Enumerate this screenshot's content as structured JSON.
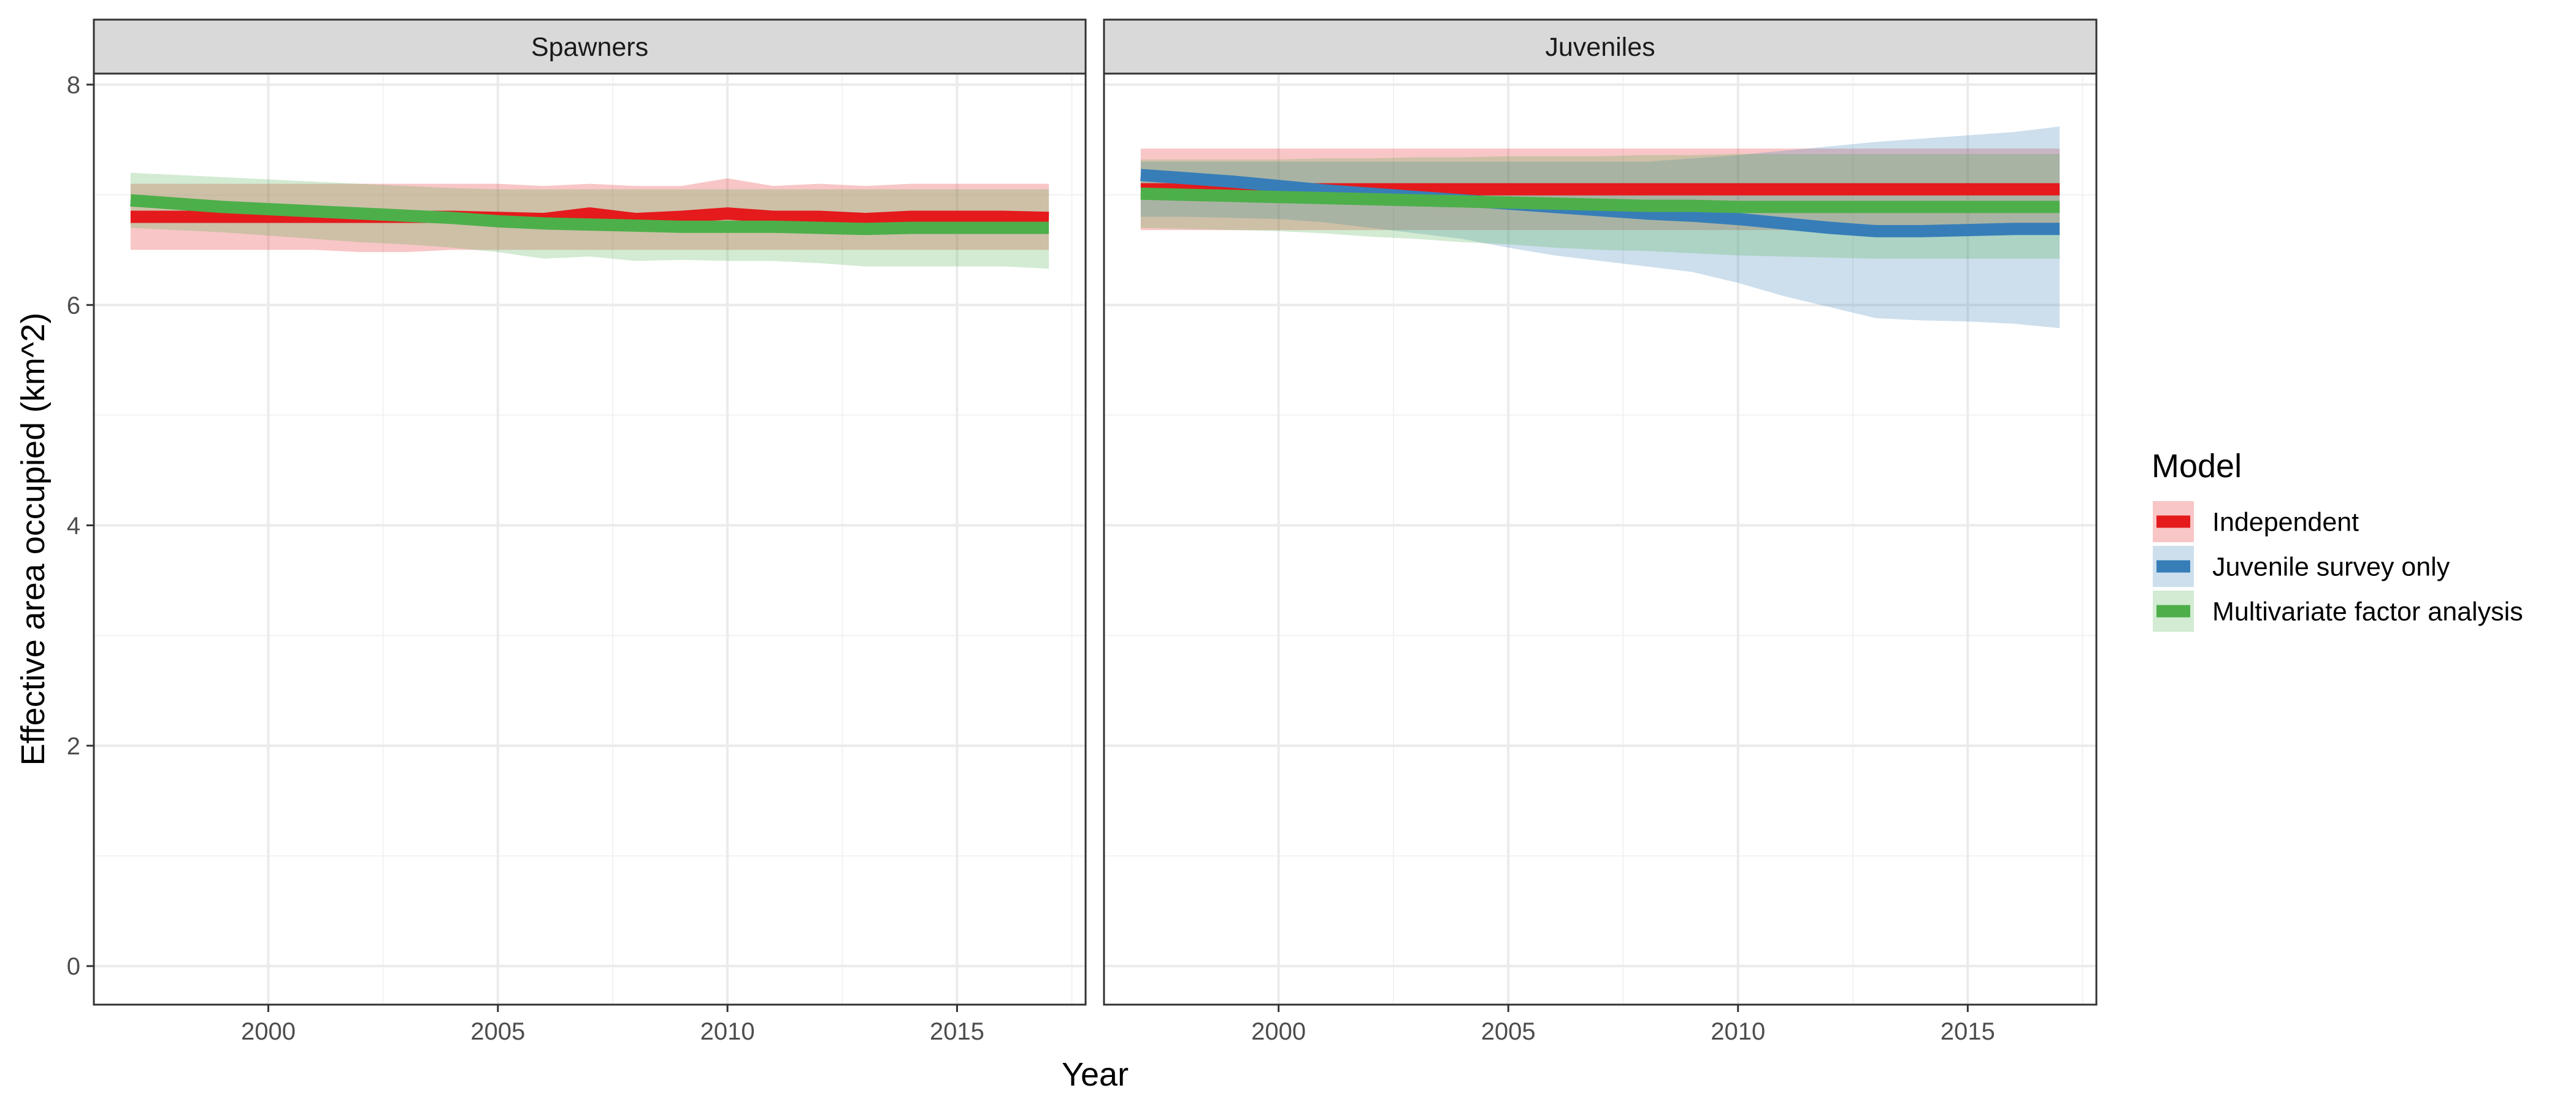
{
  "chart_data": {
    "type": "line",
    "xlabel": "Year",
    "ylabel": "Effective area occupied (km^2)",
    "xlim": [
      1996.2,
      2017.8
    ],
    "ylim": [
      -0.35,
      8.1
    ],
    "x_ticks": [
      2000,
      2005,
      2010,
      2015
    ],
    "y_ticks": [
      0,
      2,
      4,
      6,
      8
    ],
    "grid": true,
    "legend": {
      "title": "Model",
      "position": "right",
      "entries": [
        "Independent",
        "Juvenile survey only",
        "Multivariate factor analysis"
      ]
    },
    "colors": {
      "Independent": "#e41a1c",
      "Juvenile survey only": "#377eb8",
      "Multivariate factor analysis": "#4daf4a"
    },
    "panels": [
      {
        "title": "Spawners",
        "x": [
          1997,
          1998,
          1999,
          2000,
          2001,
          2002,
          2003,
          2004,
          2005,
          2006,
          2007,
          2008,
          2009,
          2010,
          2011,
          2012,
          2013,
          2014,
          2015,
          2016,
          2017
        ],
        "series": [
          {
            "name": "Independent",
            "values": [
              6.8,
              6.8,
              6.8,
              6.8,
              6.8,
              6.8,
              6.8,
              6.8,
              6.79,
              6.78,
              6.83,
              6.78,
              6.8,
              6.83,
              6.8,
              6.8,
              6.78,
              6.8,
              6.8,
              6.8,
              6.79
            ],
            "lower": [
              6.5,
              6.5,
              6.5,
              6.5,
              6.5,
              6.48,
              6.48,
              6.5,
              6.5,
              6.5,
              6.5,
              6.5,
              6.5,
              6.5,
              6.5,
              6.5,
              6.5,
              6.5,
              6.5,
              6.5,
              6.5
            ],
            "upper": [
              7.1,
              7.1,
              7.1,
              7.1,
              7.1,
              7.1,
              7.1,
              7.1,
              7.1,
              7.08,
              7.1,
              7.08,
              7.08,
              7.15,
              7.08,
              7.1,
              7.08,
              7.1,
              7.1,
              7.1,
              7.1
            ]
          },
          {
            "name": "Juvenile survey only",
            "values": [],
            "lower": [],
            "upper": []
          },
          {
            "name": "Multivariate factor analysis",
            "values": [
              6.95,
              6.92,
              6.89,
              6.87,
              6.85,
              6.83,
              6.81,
              6.79,
              6.76,
              6.74,
              6.73,
              6.72,
              6.71,
              6.71,
              6.71,
              6.7,
              6.69,
              6.7,
              6.7,
              6.7,
              6.7
            ],
            "lower": [
              6.7,
              6.68,
              6.66,
              6.63,
              6.6,
              6.57,
              6.55,
              6.52,
              6.48,
              6.42,
              6.44,
              6.4,
              6.41,
              6.4,
              6.4,
              6.38,
              6.35,
              6.35,
              6.35,
              6.35,
              6.33
            ],
            "upper": [
              7.2,
              7.18,
              7.16,
              7.14,
              7.12,
              7.1,
              7.08,
              7.06,
              7.05,
              7.05,
              7.05,
              7.05,
              7.05,
              7.05,
              7.05,
              7.05,
              7.05,
              7.05,
              7.05,
              7.05,
              7.05
            ]
          }
        ]
      },
      {
        "title": "Juveniles",
        "x": [
          1997,
          1998,
          1999,
          2000,
          2001,
          2002,
          2003,
          2004,
          2005,
          2006,
          2007,
          2008,
          2009,
          2010,
          2011,
          2012,
          2013,
          2014,
          2015,
          2016,
          2017
        ],
        "series": [
          {
            "name": "Independent",
            "values": [
              7.05,
              7.05,
              7.05,
              7.05,
              7.05,
              7.05,
              7.05,
              7.05,
              7.05,
              7.05,
              7.05,
              7.05,
              7.05,
              7.05,
              7.05,
              7.05,
              7.05,
              7.05,
              7.05,
              7.05,
              7.05
            ],
            "lower": [
              6.68,
              6.68,
              6.68,
              6.68,
              6.68,
              6.68,
              6.68,
              6.68,
              6.68,
              6.68,
              6.68,
              6.68,
              6.68,
              6.68,
              6.68,
              6.68,
              6.68,
              6.68,
              6.68,
              6.68,
              6.68
            ],
            "upper": [
              7.42,
              7.42,
              7.42,
              7.42,
              7.42,
              7.42,
              7.42,
              7.42,
              7.42,
              7.42,
              7.42,
              7.42,
              7.42,
              7.42,
              7.42,
              7.42,
              7.42,
              7.42,
              7.42,
              7.42,
              7.42
            ]
          },
          {
            "name": "Juvenile survey only",
            "values": [
              7.18,
              7.15,
              7.12,
              7.08,
              7.04,
              7.01,
              6.98,
              6.95,
              6.92,
              6.89,
              6.86,
              6.83,
              6.81,
              6.78,
              6.74,
              6.7,
              6.67,
              6.67,
              6.68,
              6.69,
              6.69
            ],
            "lower": [
              6.8,
              6.8,
              6.79,
              6.78,
              6.75,
              6.7,
              6.65,
              6.6,
              6.52,
              6.45,
              6.4,
              6.35,
              6.3,
              6.2,
              6.08,
              5.98,
              5.88,
              5.86,
              5.85,
              5.83,
              5.79
            ],
            "upper": [
              7.3,
              7.3,
              7.3,
              7.3,
              7.3,
              7.3,
              7.3,
              7.3,
              7.3,
              7.3,
              7.3,
              7.3,
              7.33,
              7.36,
              7.4,
              7.44,
              7.48,
              7.51,
              7.54,
              7.57,
              7.62
            ]
          },
          {
            "name": "Multivariate factor analysis",
            "values": [
              7.01,
              7.0,
              6.99,
              6.98,
              6.97,
              6.96,
              6.95,
              6.94,
              6.93,
              6.92,
              6.91,
              6.9,
              6.9,
              6.89,
              6.89,
              6.89,
              6.89,
              6.89,
              6.89,
              6.89,
              6.89
            ],
            "lower": [
              6.7,
              6.69,
              6.68,
              6.67,
              6.65,
              6.62,
              6.6,
              6.57,
              6.55,
              6.52,
              6.5,
              6.49,
              6.47,
              6.45,
              6.44,
              6.43,
              6.42,
              6.42,
              6.42,
              6.42,
              6.42
            ],
            "upper": [
              7.32,
              7.32,
              7.32,
              7.32,
              7.33,
              7.33,
              7.34,
              7.34,
              7.35,
              7.35,
              7.35,
              7.36,
              7.36,
              7.37,
              7.37,
              7.37,
              7.37,
              7.37,
              7.37,
              7.37,
              7.37
            ]
          }
        ]
      }
    ]
  }
}
